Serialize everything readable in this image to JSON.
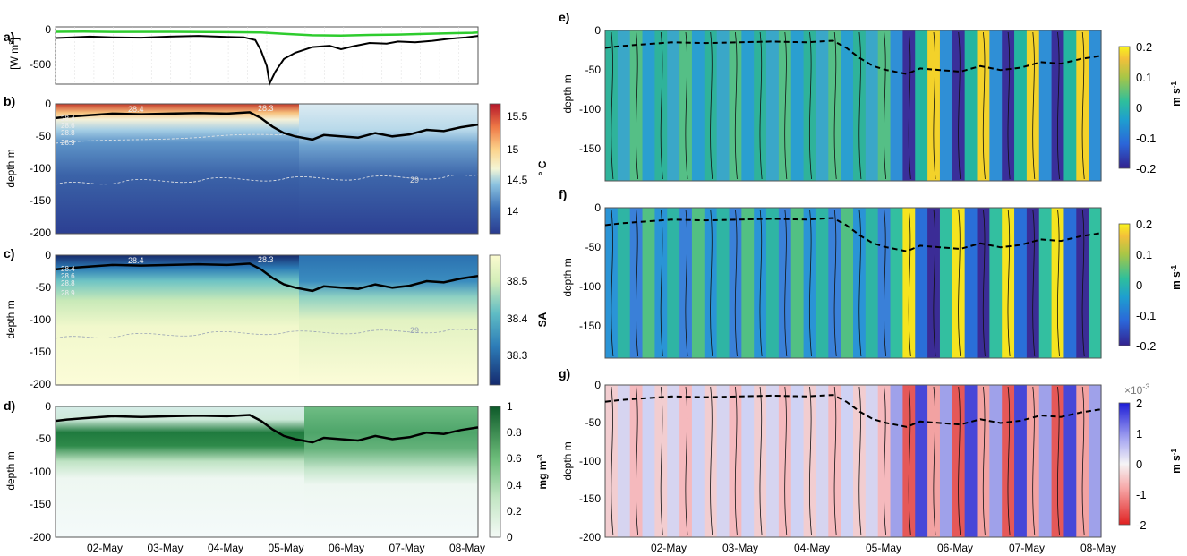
{
  "figure": {
    "panels": {
      "a": "a)",
      "b": "b)",
      "c": "c)",
      "d": "d)",
      "e": "e)",
      "f": "f)",
      "g": "g)"
    },
    "dates": [
      "02-May",
      "03-May",
      "04-May",
      "05-May",
      "06-May",
      "07-May",
      "08-May"
    ]
  },
  "chart_data": [
    {
      "id": "a",
      "type": "line",
      "ylabel": "[W m²]",
      "ylabel_parts": {
        "main": "[W m",
        "sup": "2",
        "close": "]"
      },
      "yticks": [
        "0",
        "-500"
      ],
      "ylim": [
        -780,
        40
      ],
      "series": [
        {
          "color": "#2ecc2e",
          "x": [
            1.0,
            1.5,
            2.0,
            3.0,
            4.0,
            4.6,
            5.0,
            5.5,
            6.0,
            6.5,
            7.0,
            7.5,
            8.0,
            8.3,
            8.4
          ],
          "y": [
            -30,
            -28,
            -32,
            -30,
            -35,
            -40,
            -60,
            -80,
            -85,
            -75,
            -70,
            -60,
            -50,
            -45,
            -40
          ]
        },
        {
          "color": "#000000",
          "x": [
            1.0,
            1.3,
            1.6,
            2.0,
            2.5,
            3.0,
            3.5,
            4.0,
            4.3,
            4.5,
            4.6,
            4.7,
            4.75,
            4.85,
            5.0,
            5.2,
            5.5,
            5.8,
            6.0,
            6.2,
            6.5,
            6.8,
            7.0,
            7.3,
            7.6,
            7.9,
            8.2,
            8.4
          ],
          "y": [
            -120,
            -110,
            -100,
            -110,
            -115,
            -100,
            -90,
            -105,
            -110,
            -150,
            -300,
            -520,
            -770,
            -600,
            -420,
            -330,
            -250,
            -230,
            -280,
            -240,
            -190,
            -200,
            -170,
            -180,
            -160,
            -130,
            -110,
            -90
          ]
        }
      ]
    },
    {
      "id": "b",
      "type": "heatmap",
      "ylabel": "depth m",
      "yticks": [
        "0",
        "-50",
        "-100",
        "-150",
        "-200"
      ],
      "ylim": [
        -200,
        0
      ],
      "colorbar": {
        "label": "° C",
        "ticks": [
          "15.5",
          "15",
          "14.5",
          "14"
        ],
        "range": [
          13.7,
          15.7
        ]
      },
      "contour_labels": [
        "28.4",
        "28.3",
        "28.4",
        "28.6",
        "28.8",
        "28.9",
        "29"
      ],
      "mld_line": {
        "x": [
          1.0,
          1.2,
          1.5,
          2.0,
          2.5,
          3.0,
          3.5,
          4.0,
          4.4,
          4.6,
          4.8,
          5.0,
          5.2,
          5.5,
          5.7,
          6.0,
          6.3,
          6.6,
          6.9,
          7.2,
          7.5,
          7.8,
          8.1,
          8.4
        ],
        "y": [
          -22,
          -20,
          -18,
          -15,
          -16,
          -15,
          -14,
          -15,
          -13,
          -22,
          -35,
          -45,
          -50,
          -55,
          -48,
          -50,
          -52,
          -45,
          -50,
          -47,
          -40,
          -42,
          -36,
          -32
        ]
      }
    },
    {
      "id": "c",
      "type": "heatmap",
      "ylabel": "depth m",
      "yticks": [
        "0",
        "-50",
        "-100",
        "-150",
        "-200"
      ],
      "ylim": [
        -200,
        0
      ],
      "colorbar": {
        "label": "SA",
        "ticks": [
          "38.5",
          "38.4",
          "38.3"
        ],
        "range": [
          38.22,
          38.58
        ]
      },
      "contour_labels": [
        "28.4",
        "28.3",
        "28.4",
        "28.6",
        "28.8",
        "28.9",
        "29"
      ],
      "mld_line": {
        "x": [
          1.0,
          1.2,
          1.5,
          2.0,
          2.5,
          3.0,
          3.5,
          4.0,
          4.4,
          4.6,
          4.8,
          5.0,
          5.2,
          5.5,
          5.7,
          6.0,
          6.3,
          6.6,
          6.9,
          7.2,
          7.5,
          7.8,
          8.1,
          8.4
        ],
        "y": [
          -22,
          -20,
          -18,
          -15,
          -16,
          -15,
          -14,
          -15,
          -13,
          -22,
          -35,
          -45,
          -50,
          -55,
          -48,
          -50,
          -52,
          -45,
          -50,
          -47,
          -40,
          -42,
          -36,
          -32
        ]
      }
    },
    {
      "id": "d",
      "type": "heatmap",
      "ylabel": "depth m",
      "yticks": [
        "0",
        "-50",
        "-100",
        "-150",
        "-200"
      ],
      "ylim": [
        -200,
        0
      ],
      "colorbar": {
        "label": "mg m-3",
        "label_parts": {
          "main": "mg m",
          "sup": "-3"
        },
        "ticks": [
          "1",
          "0.8",
          "0.6",
          "0.4",
          "0.2",
          "0"
        ],
        "range": [
          0,
          1
        ]
      },
      "mld_line": {
        "x": [
          1.0,
          1.2,
          1.5,
          2.0,
          2.5,
          3.0,
          3.5,
          4.0,
          4.4,
          4.6,
          4.8,
          5.0,
          5.2,
          5.5,
          5.7,
          6.0,
          6.3,
          6.6,
          6.9,
          7.2,
          7.5,
          7.8,
          8.1,
          8.4
        ],
        "y": [
          -22,
          -20,
          -18,
          -15,
          -16,
          -15,
          -14,
          -15,
          -13,
          -22,
          -35,
          -45,
          -50,
          -55,
          -48,
          -50,
          -52,
          -45,
          -50,
          -47,
          -40,
          -42,
          -36,
          -32
        ]
      }
    },
    {
      "id": "e",
      "type": "heatmap",
      "ylabel": "depth m",
      "yticks": [
        "0",
        "-50",
        "-100",
        "-150"
      ],
      "ylim": [
        -190,
        0
      ],
      "colorbar": {
        "label": "m s-1",
        "label_parts": {
          "main": "m s",
          "sup": "-1"
        },
        "ticks": [
          "0.2",
          "0.1",
          "0",
          "-0.1",
          "-0.2"
        ],
        "range": [
          -0.2,
          0.2
        ]
      },
      "mld_line": {
        "x": [
          1.0,
          1.2,
          1.5,
          2.0,
          2.5,
          3.0,
          3.5,
          4.0,
          4.4,
          4.6,
          4.8,
          5.0,
          5.2,
          5.5,
          5.7,
          6.0,
          6.3,
          6.6,
          6.9,
          7.2,
          7.5,
          7.8,
          8.1,
          8.4
        ],
        "y": [
          -22,
          -20,
          -18,
          -15,
          -16,
          -15,
          -14,
          -15,
          -13,
          -22,
          -35,
          -45,
          -50,
          -55,
          -48,
          -50,
          -52,
          -45,
          -50,
          -47,
          -40,
          -42,
          -36,
          -32
        ]
      }
    },
    {
      "id": "f",
      "type": "heatmap",
      "ylabel": "depth m",
      "yticks": [
        "0",
        "-50",
        "-100",
        "-150"
      ],
      "ylim": [
        -190,
        0
      ],
      "colorbar": {
        "label": "m s-1",
        "label_parts": {
          "main": "m s",
          "sup": "-1"
        },
        "ticks": [
          "0.2",
          "0.1",
          "0",
          "-0.1",
          "-0.2"
        ],
        "range": [
          -0.2,
          0.2
        ]
      },
      "mld_line": {
        "x": [
          1.0,
          1.2,
          1.5,
          2.0,
          2.5,
          3.0,
          3.5,
          4.0,
          4.4,
          4.6,
          4.8,
          5.0,
          5.2,
          5.5,
          5.7,
          6.0,
          6.3,
          6.6,
          6.9,
          7.2,
          7.5,
          7.8,
          8.1,
          8.4
        ],
        "y": [
          -22,
          -20,
          -18,
          -15,
          -16,
          -15,
          -14,
          -15,
          -13,
          -22,
          -35,
          -45,
          -50,
          -55,
          -48,
          -50,
          -52,
          -45,
          -50,
          -47,
          -40,
          -42,
          -36,
          -32
        ]
      }
    },
    {
      "id": "g",
      "type": "heatmap",
      "ylabel": "depth m",
      "yticks": [
        "0",
        "-50",
        "-100",
        "-150",
        "-200"
      ],
      "ylim": [
        -200,
        0
      ],
      "colorbar": {
        "label": "m s-1",
        "label_parts": {
          "main": "m s",
          "sup": "-1"
        },
        "ticks": [
          "2",
          "1",
          "0",
          "-1",
          "-2"
        ],
        "range": [
          -2,
          2
        ],
        "exponent": "×10",
        "exponent_sup": "-3"
      },
      "mld_line": {
        "x": [
          1.0,
          1.2,
          1.5,
          2.0,
          2.5,
          3.0,
          3.5,
          4.0,
          4.4,
          4.6,
          4.8,
          5.0,
          5.2,
          5.5,
          5.7,
          6.0,
          6.3,
          6.6,
          6.9,
          7.2,
          7.5,
          7.8,
          8.1,
          8.4
        ],
        "y": [
          -22,
          -20,
          -18,
          -15,
          -16,
          -15,
          -14,
          -15,
          -13,
          -22,
          -35,
          -45,
          -50,
          -55,
          -48,
          -50,
          -52,
          -45,
          -50,
          -47,
          -40,
          -42,
          -36,
          -32
        ]
      }
    }
  ]
}
